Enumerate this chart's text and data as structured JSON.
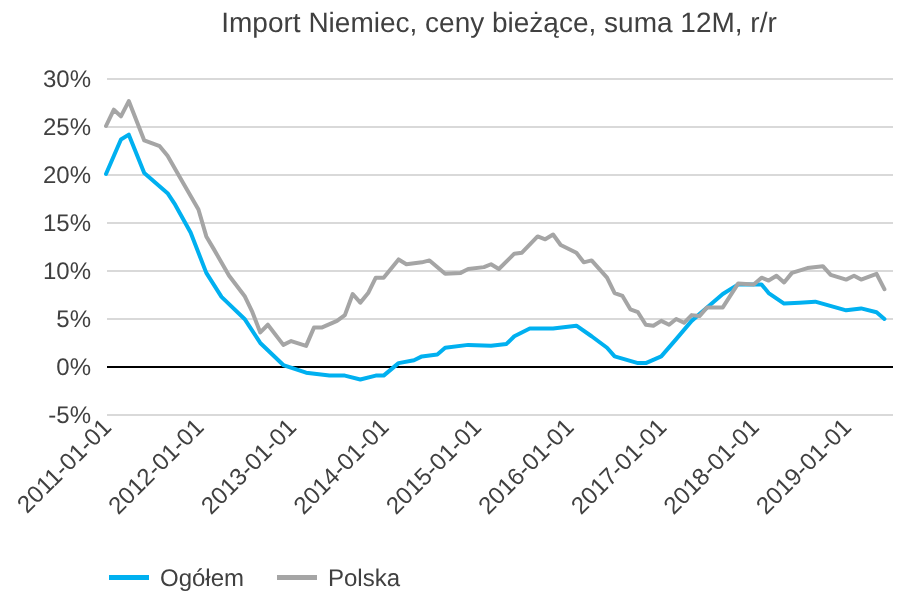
{
  "chart_data": {
    "type": "line",
    "title": "Import Niemiec, ceny bieżące, suma 12M, r/r",
    "series": [
      {
        "name": "Ogółem",
        "color": "#00b0f0",
        "x": [
          "2011-01",
          "2011-03",
          "2011-04",
          "2011-06",
          "2011-09",
          "2011-10",
          "2011-12",
          "2012-02",
          "2012-04",
          "2012-07",
          "2012-09",
          "2012-12",
          "2013-03",
          "2013-06",
          "2013-08",
          "2013-10",
          "2013-12",
          "2014-01",
          "2014-03",
          "2014-05",
          "2014-06",
          "2014-08",
          "2014-09",
          "2014-12",
          "2015-03",
          "2015-05",
          "2015-06",
          "2015-08",
          "2015-11",
          "2016-02",
          "2016-04",
          "2016-06",
          "2016-07",
          "2016-10",
          "2016-11",
          "2017-01",
          "2017-03",
          "2017-05",
          "2017-07",
          "2017-09",
          "2017-11",
          "2018-02",
          "2018-03",
          "2018-05",
          "2018-07",
          "2018-09",
          "2019-01",
          "2019-03",
          "2019-05",
          "2019-06"
        ],
        "values": [
          20,
          23.6,
          24.1,
          20.1,
          18,
          16.8,
          13.9,
          9.7,
          7.2,
          4.9,
          2.4,
          0.1,
          -0.7,
          -1.0,
          -1.0,
          -1.4,
          -1.0,
          -1.0,
          0.3,
          0.6,
          1.0,
          1.2,
          1.9,
          2.2,
          2.1,
          2.3,
          3.1,
          3.9,
          3.9,
          4.2,
          3.1,
          1.9,
          1.0,
          0.3,
          0.3,
          1.0,
          2.8,
          4.7,
          6.1,
          7.5,
          8.5,
          8.5,
          7.6,
          6.5,
          6.6,
          6.7,
          5.8,
          6.0,
          5.6,
          4.9
        ]
      },
      {
        "name": "Polska",
        "color": "#a5a5a5",
        "x": [
          "2011-01",
          "2011-02",
          "2011-03",
          "2011-04",
          "2011-06",
          "2011-08",
          "2011-09",
          "2011-11",
          "2012-01",
          "2012-02",
          "2012-03",
          "2012-05",
          "2012-07",
          "2012-08",
          "2012-09",
          "2012-10",
          "2012-12",
          "2013-01",
          "2013-03",
          "2013-04",
          "2013-05",
          "2013-07",
          "2013-08",
          "2013-09",
          "2013-10",
          "2013-11",
          "2013-12",
          "2014-01",
          "2014-03",
          "2014-04",
          "2014-06",
          "2014-07",
          "2014-09",
          "2014-11",
          "2014-12",
          "2015-02",
          "2015-03",
          "2015-04",
          "2015-06",
          "2015-07",
          "2015-09",
          "2015-10",
          "2015-11",
          "2015-12",
          "2016-02",
          "2016-03",
          "2016-04",
          "2016-06",
          "2016-07",
          "2016-08",
          "2016-09",
          "2016-10",
          "2016-11",
          "2016-12",
          "2017-01",
          "2017-02",
          "2017-03",
          "2017-04",
          "2017-05",
          "2017-06",
          "2017-07",
          "2017-09",
          "2017-11",
          "2018-01",
          "2018-02",
          "2018-03",
          "2018-04",
          "2018-05",
          "2018-06",
          "2018-08",
          "2018-10",
          "2018-11",
          "2019-01",
          "2019-02",
          "2019-03",
          "2019-05",
          "2019-06"
        ],
        "values": [
          25,
          26.7,
          26.0,
          27.6,
          23.5,
          22.9,
          21.9,
          19.1,
          16.3,
          13.5,
          12.2,
          9.4,
          7.3,
          5.6,
          3.5,
          4.3,
          2.2,
          2.6,
          2.1,
          4.0,
          4.0,
          4.7,
          5.3,
          7.5,
          6.6,
          7.6,
          9.2,
          9.2,
          11.1,
          10.6,
          10.8,
          11.0,
          9.6,
          9.7,
          10.1,
          10.3,
          10.6,
          10.1,
          11.7,
          11.8,
          13.5,
          13.2,
          13.7,
          12.6,
          11.8,
          10.8,
          11.0,
          9.2,
          7.6,
          7.3,
          5.9,
          5.6,
          4.3,
          4.2,
          4.7,
          4.3,
          4.9,
          4.5,
          5.3,
          5.2,
          6.1,
          6.1,
          8.6,
          8.5,
          9.2,
          8.9,
          9.4,
          8.7,
          9.7,
          10.2,
          10.4,
          9.5,
          9.0,
          9.4,
          9.0,
          9.6,
          8.0
        ]
      }
    ],
    "xlim": [
      "2011-01",
      "2019-07"
    ],
    "xticks": [
      "2011-01-01",
      "2012-01-01",
      "2013-01-01",
      "2014-01-01",
      "2015-01-01",
      "2016-01-01",
      "2017-01-01",
      "2018-01-01",
      "2019-01-01"
    ],
    "ylim": [
      -5,
      30
    ],
    "yticks": [
      {
        "value": -5,
        "label": "-5%"
      },
      {
        "value": 0,
        "label": "0%"
      },
      {
        "value": 5,
        "label": "5%"
      },
      {
        "value": 10,
        "label": "10%"
      },
      {
        "value": 15,
        "label": "15%"
      },
      {
        "value": 20,
        "label": "20%"
      },
      {
        "value": 25,
        "label": "25%"
      },
      {
        "value": 30,
        "label": "30%"
      }
    ],
    "grid": "y",
    "legend": "bottom",
    "marker": "none",
    "line_style": "solid"
  }
}
